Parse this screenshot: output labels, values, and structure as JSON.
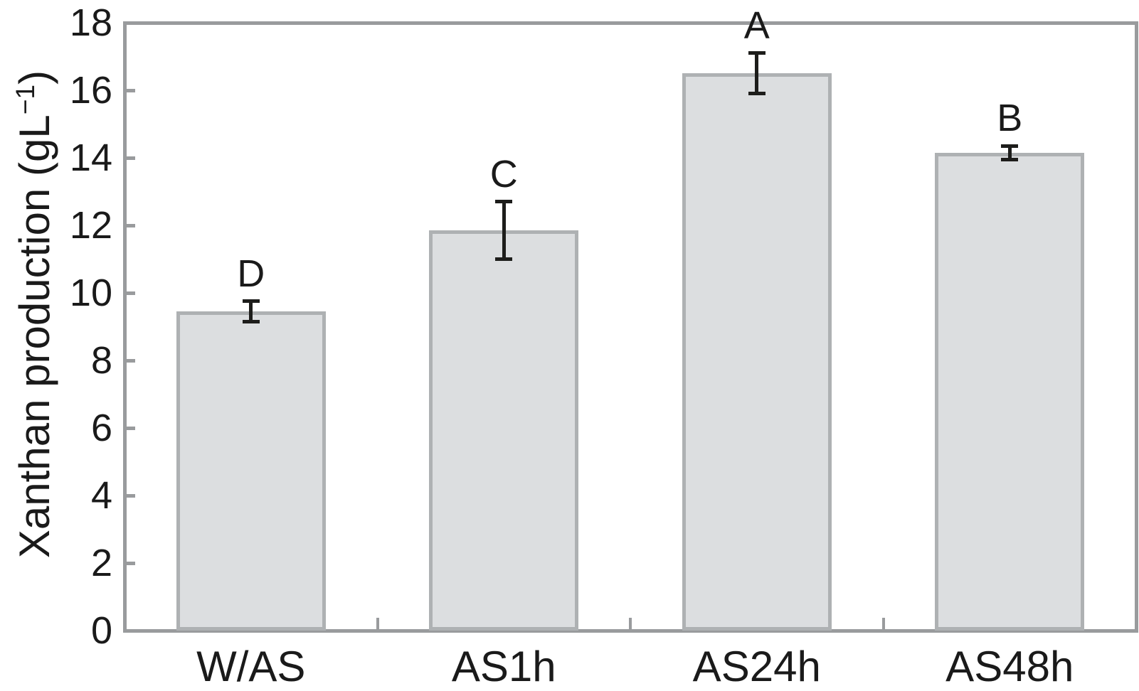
{
  "chart_data": {
    "type": "bar",
    "title": "",
    "xlabel": "",
    "ylabel": "Xanthan production (gL⁻¹)",
    "ylabel_parts": {
      "main": "Xanthan production (gL",
      "sup": "−1",
      "close": ")"
    },
    "ylim": [
      0,
      18
    ],
    "ytick_interval": 2,
    "ytick_labels": [
      "0",
      "2",
      "4",
      "6",
      "8",
      "10",
      "12",
      "14",
      "16",
      "18"
    ],
    "grid": false,
    "legend": "none",
    "categories": [
      "W/AS",
      "AS1h",
      "AS24h",
      "AS48h"
    ],
    "values": [
      9.45,
      11.85,
      16.5,
      14.15
    ],
    "error_bars": [
      0.3,
      0.85,
      0.6,
      0.2
    ],
    "significance_letters": [
      "D",
      "C",
      "A",
      "B"
    ],
    "colors": {
      "bar_fill": "#dcdee0",
      "bar_border": "#aeb1b3",
      "axis": "#999b9d",
      "error_bar": "#1d1d1b",
      "text": "#1a1a1a",
      "background": "#ffffff"
    }
  }
}
